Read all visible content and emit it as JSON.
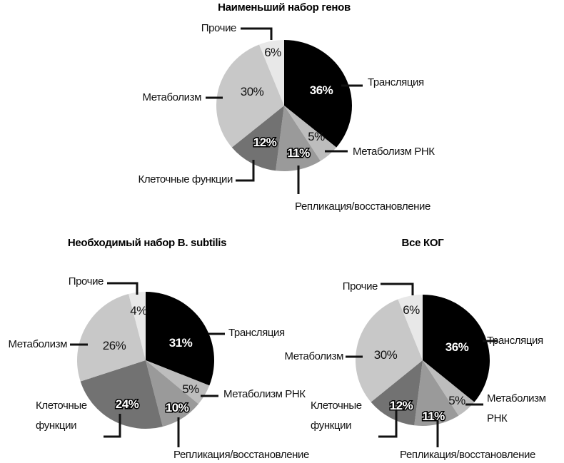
{
  "chart_data": [
    {
      "type": "pie",
      "title": "Наименьший набор генов",
      "labels": [
        "Трансляция",
        "Метаболизм РНК",
        "Репликация/восстановление",
        "Клеточные функции",
        "Метаболизм",
        "Прочие"
      ],
      "values": [
        36,
        5,
        11,
        12,
        30,
        6
      ],
      "value_labels": [
        "36%",
        "5%",
        "11%",
        "12%",
        "30%",
        "6%"
      ],
      "colors": [
        "#000000",
        "#bdbdbd",
        "#9a9a9a",
        "#727272",
        "#c8c8c8",
        "#e8e8e8"
      ]
    },
    {
      "type": "pie",
      "title": "Необходимый набор B. subtilis",
      "labels": [
        "Трансляция",
        "Метаболизм РНК",
        "Репликация/восстановление",
        "Клеточные функции",
        "Метаболизм",
        "Прочие"
      ],
      "values": [
        31,
        5,
        10,
        24,
        26,
        4
      ],
      "value_labels": [
        "31%",
        "5%",
        "10%",
        "24%",
        "26%",
        "4%"
      ],
      "colors": [
        "#000000",
        "#bdbdbd",
        "#9a9a9a",
        "#727272",
        "#c8c8c8",
        "#e8e8e8"
      ]
    },
    {
      "type": "pie",
      "title": "Все КОГ",
      "labels": [
        "Трансляция",
        "Метаболизм РНК",
        "Репликация/восстановление",
        "Клеточные функции",
        "Метаболизм",
        "Прочие"
      ],
      "values": [
        36,
        5,
        11,
        12,
        30,
        6
      ],
      "value_labels": [
        "36%",
        "5%",
        "11%",
        "12%",
        "30%",
        "6%"
      ],
      "colors": [
        "#000000",
        "#bdbdbd",
        "#9a9a9a",
        "#727272",
        "#c8c8c8",
        "#e8e8e8"
      ]
    }
  ]
}
